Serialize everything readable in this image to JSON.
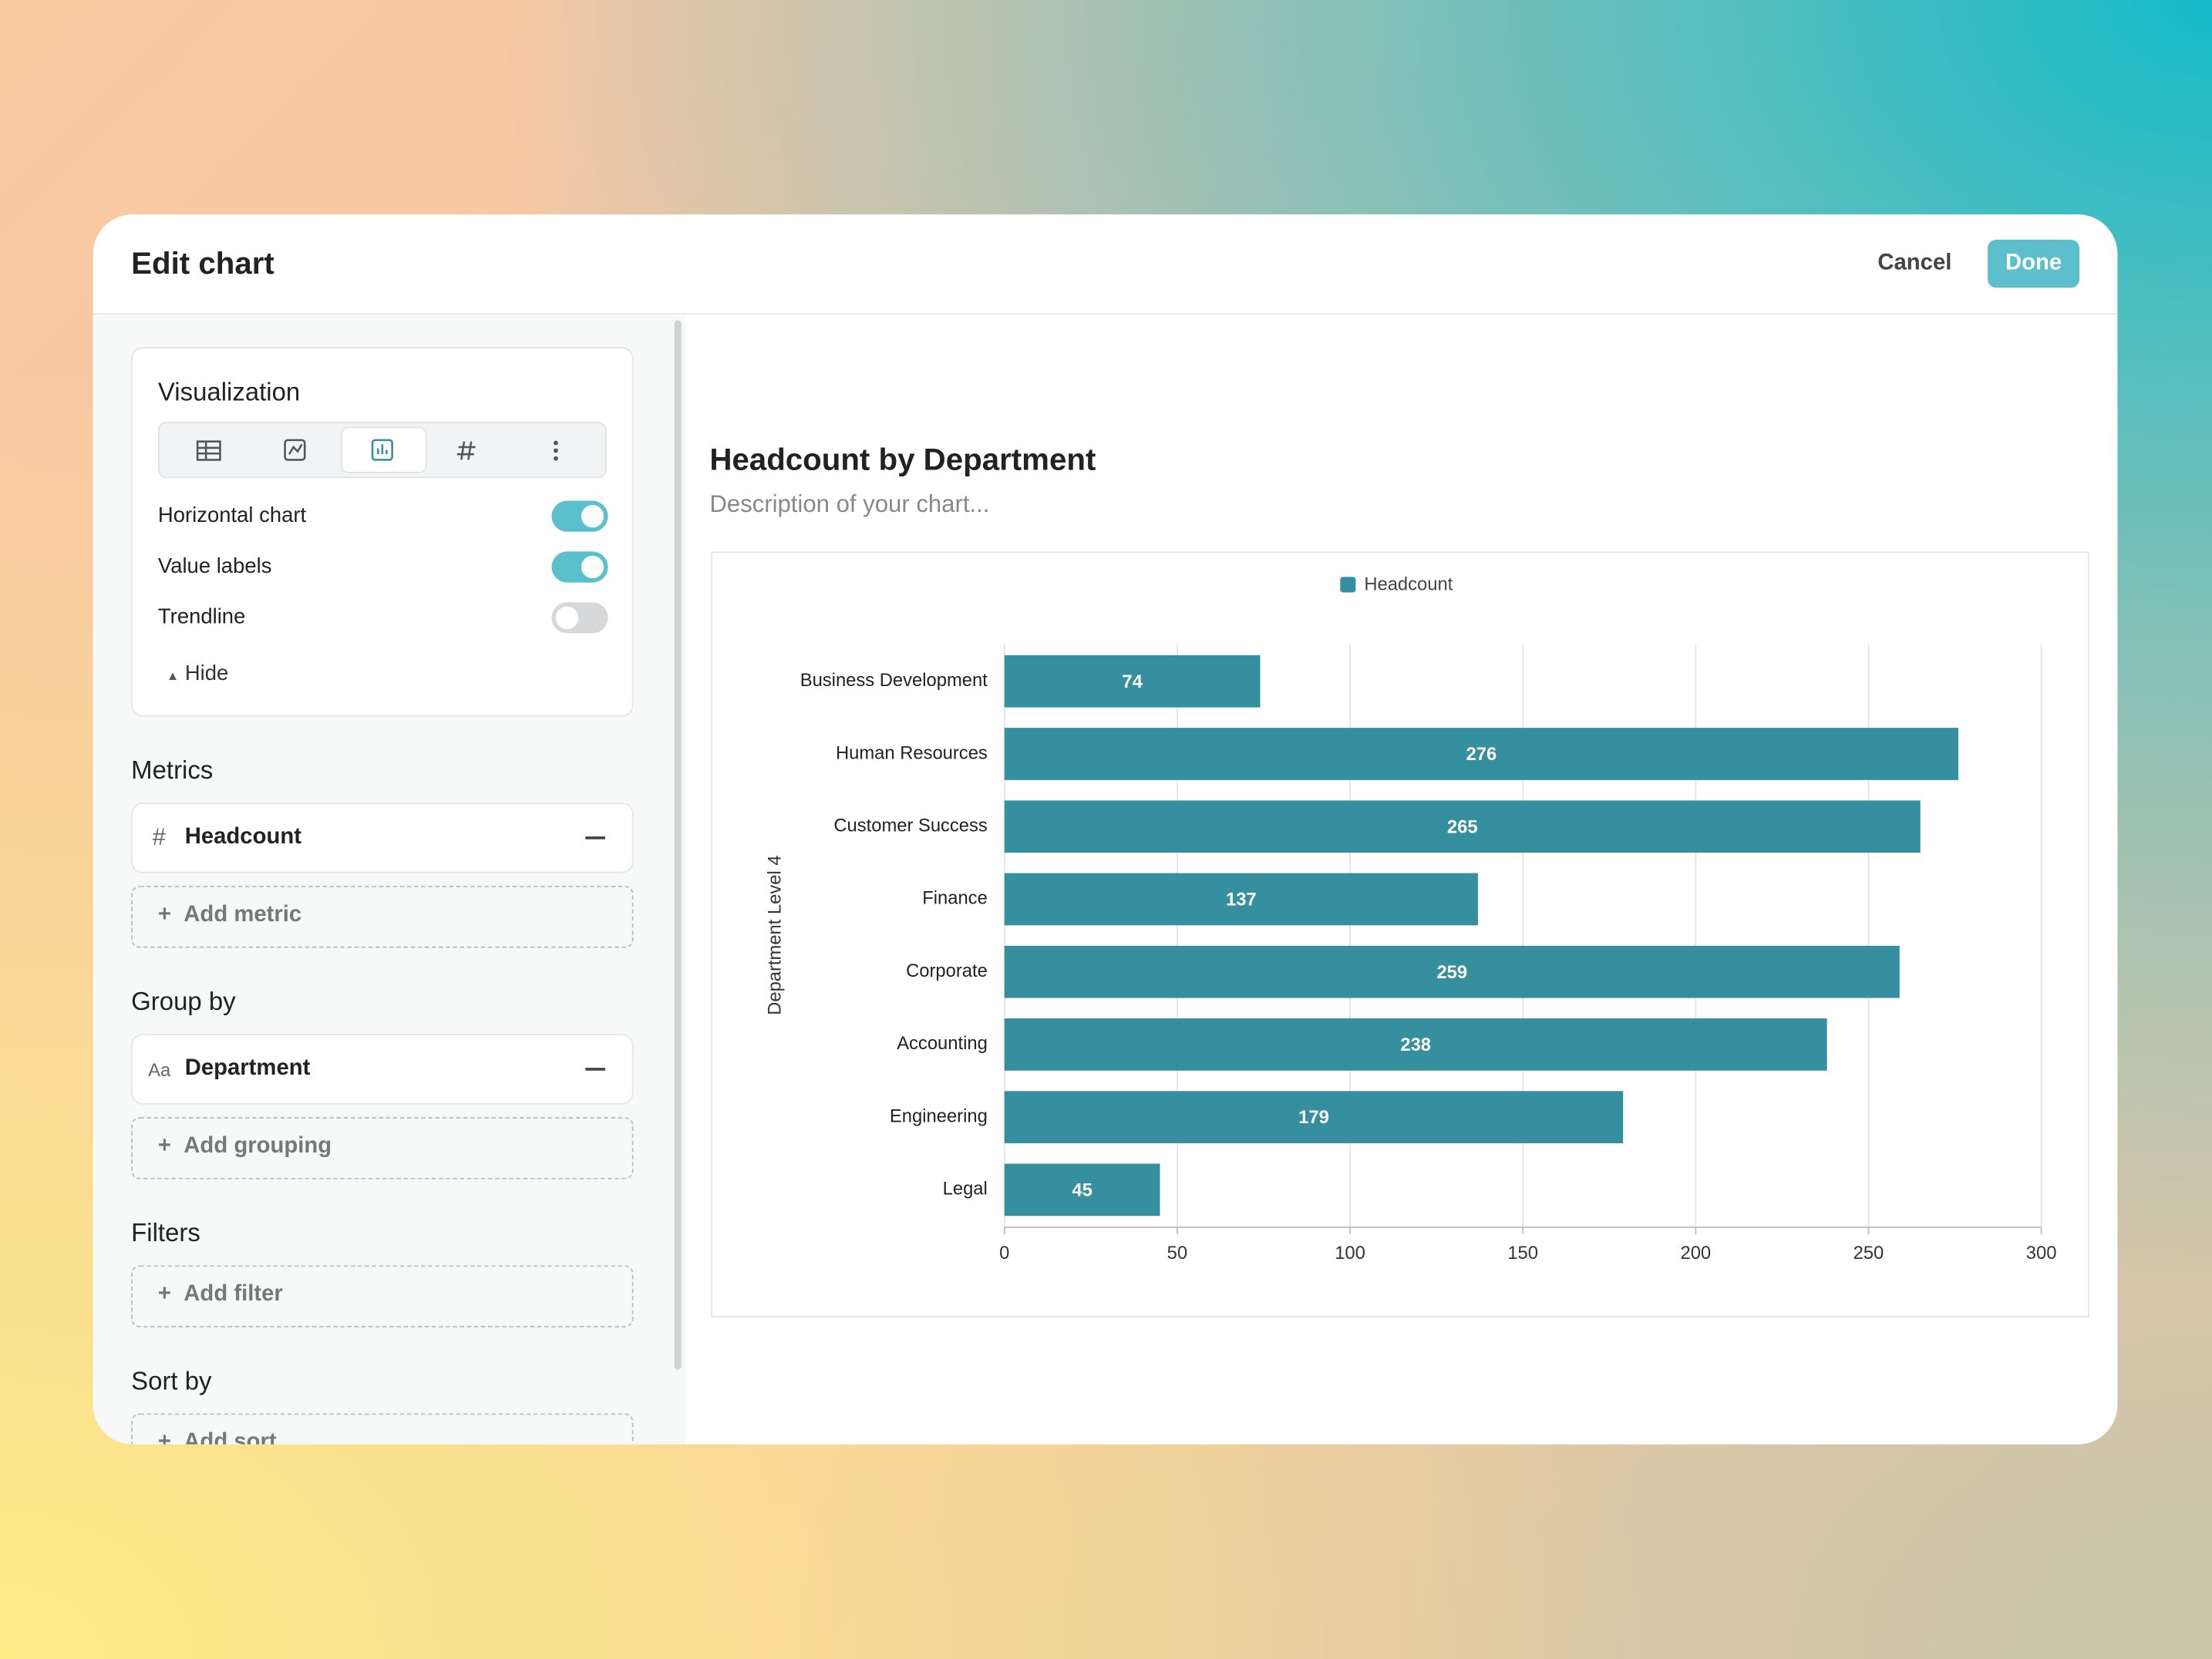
{
  "header": {
    "title": "Edit chart",
    "cancel": "Cancel",
    "done": "Done"
  },
  "sidebar": {
    "visualization": {
      "title": "Visualization",
      "toggles": [
        {
          "label": "Horizontal chart",
          "on": true
        },
        {
          "label": "Value labels",
          "on": true
        },
        {
          "label": "Trendline",
          "on": false
        }
      ],
      "hide": "Hide"
    },
    "metrics": {
      "title": "Metrics",
      "items": [
        {
          "icon": "#",
          "label": "Headcount"
        }
      ],
      "add": "Add metric"
    },
    "group_by": {
      "title": "Group by",
      "items": [
        {
          "icon": "Aa",
          "label": "Department"
        }
      ],
      "add": "Add grouping"
    },
    "filters": {
      "title": "Filters",
      "add": "Add filter"
    },
    "sort_by": {
      "title": "Sort by",
      "add": "Add sort"
    }
  },
  "chart_data": {
    "type": "bar",
    "orientation": "horizontal",
    "title": "Headcount by Department",
    "subtitle": "Description of your chart...",
    "y_label": "Department Level 4",
    "categories": [
      "Business Development",
      "Human Resources",
      "Customer Success",
      "Finance",
      "Corporate",
      "Accounting",
      "Engineering",
      "Legal"
    ],
    "series": [
      {
        "name": "Headcount",
        "color": "#358f9e",
        "values": [
          74,
          276,
          265,
          137,
          259,
          238,
          179,
          45
        ]
      }
    ],
    "xlim": [
      0,
      300
    ],
    "xticks": [
      0,
      50,
      100,
      150,
      200,
      250,
      300
    ],
    "grid": true,
    "value_labels": true,
    "legend": "top"
  }
}
